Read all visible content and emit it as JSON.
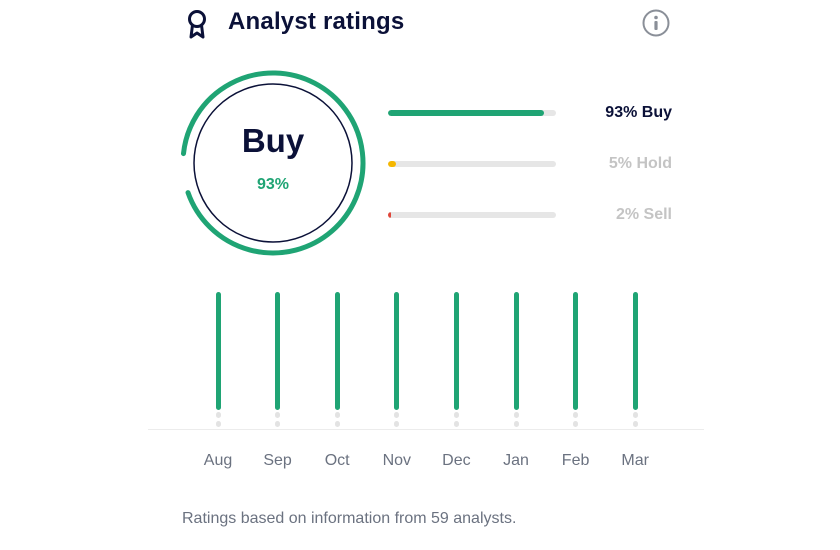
{
  "header": {
    "title": "Analyst ratings",
    "award_icon": "award-ribbon-icon",
    "info_icon": "info-circle-icon"
  },
  "gauge": {
    "label": "Buy",
    "percent_text": "93%",
    "percent": 93,
    "color": "#1fa474",
    "ring_color": "#0b1138"
  },
  "distribution": [
    {
      "label": "93% Buy",
      "percent": 93,
      "color": "#1fa474",
      "text_color": "#0b1138"
    },
    {
      "label": "5% Hold",
      "percent": 5,
      "color": "#f5b700",
      "text_color": "#c4c4c4"
    },
    {
      "label": "2% Sell",
      "percent": 2,
      "color": "#e0463a",
      "text_color": "#c4c4c4"
    }
  ],
  "history": {
    "months": [
      "Aug",
      "Sep",
      "Oct",
      "Nov",
      "Dec",
      "Jan",
      "Feb",
      "Mar"
    ],
    "buy_color": "#1fa474",
    "neutral_color": "#e3e3e3"
  },
  "footnote": "Ratings based on information from 59 analysts."
}
